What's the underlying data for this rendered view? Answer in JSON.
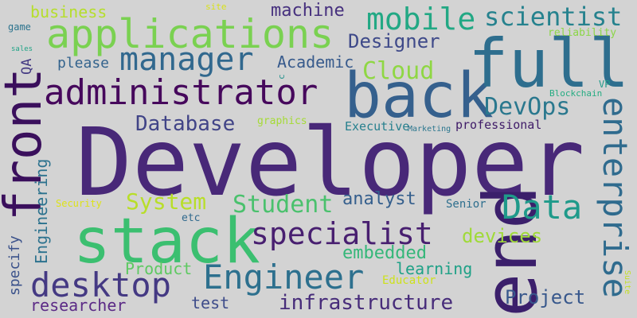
{
  "words": [
    {
      "text": "Developer",
      "color": "#482878"
    },
    {
      "text": "end",
      "color": "#3b1f6b"
    },
    {
      "text": "stack",
      "color": "#3bbf70"
    },
    {
      "text": "back",
      "color": "#35608d"
    },
    {
      "text": "full",
      "color": "#2e6e8e"
    },
    {
      "text": "front",
      "color": "#3a0f5c"
    },
    {
      "text": "applications",
      "color": "#7ad151"
    },
    {
      "text": "administrator",
      "color": "#46085c"
    },
    {
      "text": "manager",
      "color": "#31688e"
    },
    {
      "text": "enterprise",
      "color": "#2f6b8e"
    },
    {
      "text": "desktop",
      "color": "#443983"
    },
    {
      "text": "Engineer",
      "color": "#2d708e"
    },
    {
      "text": "specialist",
      "color": "#481f70"
    },
    {
      "text": "mobile",
      "color": "#22a884"
    },
    {
      "text": "scientist",
      "color": "#26828e"
    },
    {
      "text": "Data",
      "color": "#1f9a8a"
    },
    {
      "text": "infrastructure",
      "color": "#472c7a"
    },
    {
      "text": "DevOps",
      "color": "#2a788e"
    },
    {
      "text": "Database",
      "color": "#414487"
    },
    {
      "text": "Student",
      "color": "#4ac16d"
    },
    {
      "text": "System",
      "color": "#b8de29"
    },
    {
      "text": "Cloud",
      "color": "#8fd744"
    },
    {
      "text": "Designer",
      "color": "#3e4989"
    },
    {
      "text": "machine",
      "color": "#46307e"
    },
    {
      "text": "Academic",
      "color": "#375a8c"
    },
    {
      "text": "embedded",
      "color": "#35b779"
    },
    {
      "text": "devices",
      "color": "#a0da39"
    },
    {
      "text": "analyst",
      "color": "#355f8d"
    },
    {
      "text": "learning",
      "color": "#1fa187"
    },
    {
      "text": "Project",
      "color": "#38588c"
    },
    {
      "text": "Product",
      "color": "#5ec962"
    },
    {
      "text": "researcher",
      "color": "#5b2a86"
    },
    {
      "text": "test",
      "color": "#3e4c8a"
    },
    {
      "text": "Engineering",
      "color": "#2c728e"
    },
    {
      "text": "specify",
      "color": "#3b528b"
    },
    {
      "text": "business",
      "color": "#b5de2b"
    },
    {
      "text": "please",
      "color": "#33638d"
    },
    {
      "text": "QA",
      "color": "#443a83"
    },
    {
      "text": "professional",
      "color": "#3f1b68"
    },
    {
      "text": "Executive",
      "color": "#27808e"
    },
    {
      "text": "Senior",
      "color": "#2e6f8e"
    },
    {
      "text": "Educator",
      "color": "#cde11d"
    },
    {
      "text": "graphics",
      "color": "#a5db36"
    },
    {
      "text": "reliability",
      "color": "#8bd646"
    },
    {
      "text": "Blockchain",
      "color": "#25ac82"
    },
    {
      "text": "Marketing",
      "color": "#2a768e"
    },
    {
      "text": "Security",
      "color": "#dde318"
    },
    {
      "text": "etc",
      "color": "#30698e"
    },
    {
      "text": "game",
      "color": "#2c738e"
    },
    {
      "text": "sales",
      "color": "#20a486"
    },
    {
      "text": "site",
      "color": "#d8e219"
    },
    {
      "text": "VP",
      "color": "#1e9b8a"
    },
    {
      "text": "Suite",
      "color": "#c2df23"
    },
    {
      "text": "c",
      "color": "#21918c"
    }
  ]
}
